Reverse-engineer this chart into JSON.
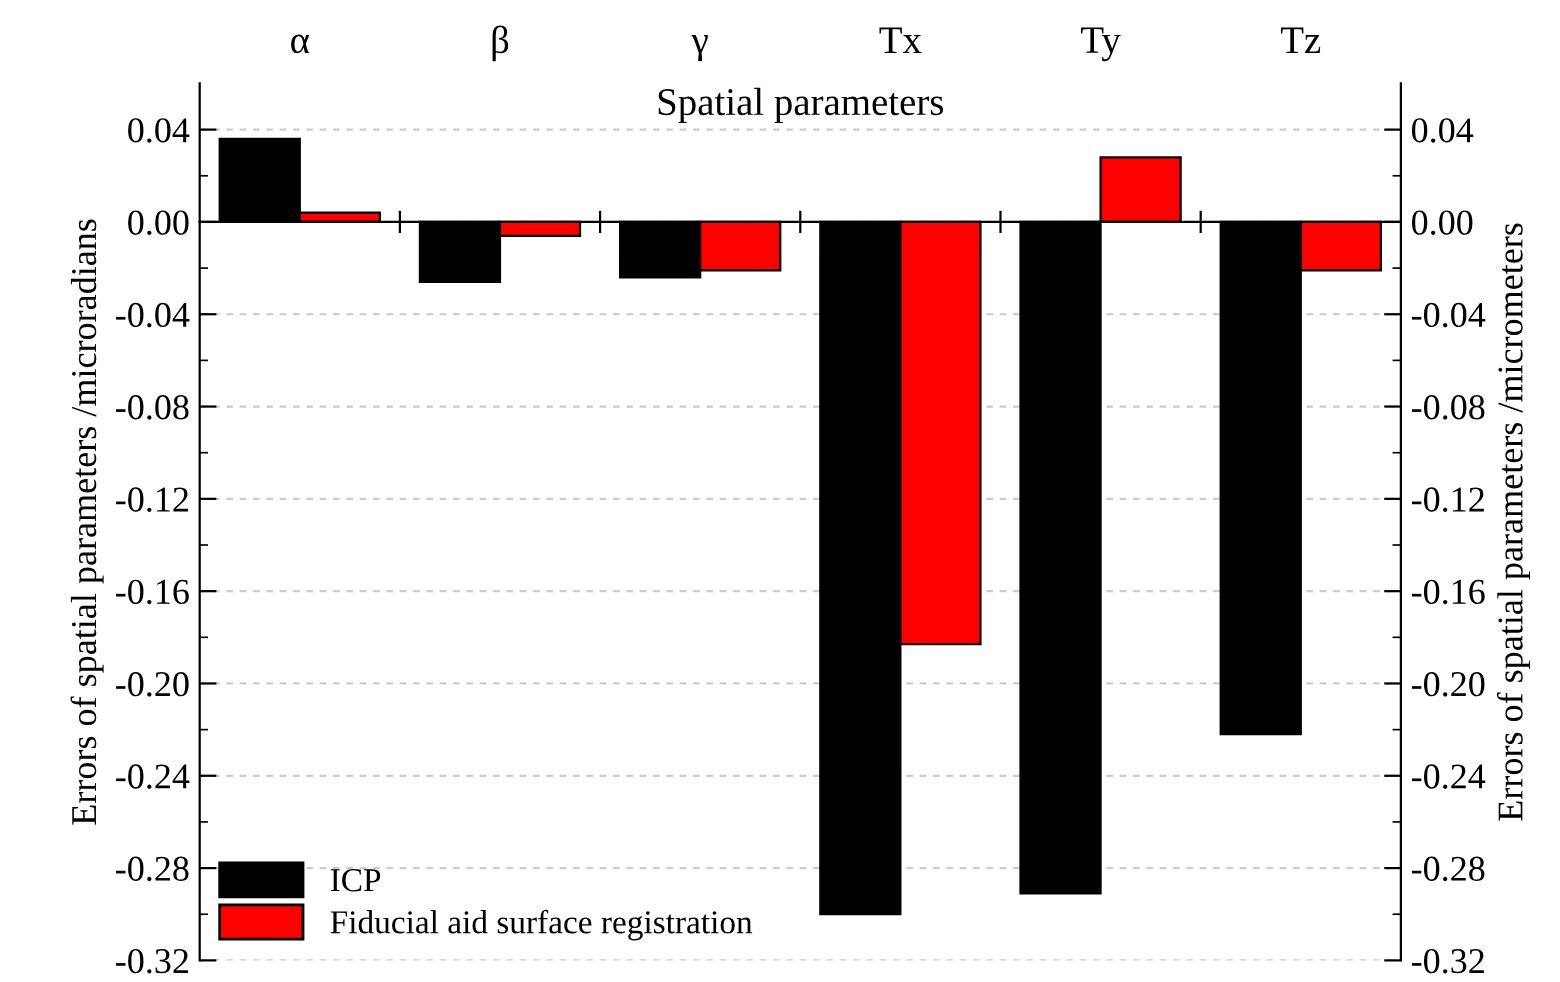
{
  "chart_data": {
    "type": "bar",
    "xlabel": "Spatial parameters",
    "ylabel": "Errors of spatial parameters /microradians",
    "y2label": "Errors of spatial parameters /micrometers",
    "categories": [
      "α",
      "β",
      "γ",
      "Tx",
      "Ty",
      "Tz"
    ],
    "series": [
      {
        "name": "ICP",
        "color": "#000000",
        "values": [
          0.036,
          -0.026,
          -0.024,
          -0.3,
          -0.291,
          -0.222
        ]
      },
      {
        "name": "Fiducial aid surface registration",
        "color": "#ff0000",
        "values": [
          0.004,
          -0.006,
          -0.021,
          -0.183,
          0.028,
          -0.021
        ]
      }
    ],
    "ylim": [
      -0.32,
      0.06
    ],
    "yticks": [
      {
        "value": 0.04,
        "label": "0.04"
      },
      {
        "value": 0.0,
        "label": "0.00"
      },
      {
        "value": -0.04,
        "label": "-0.04"
      },
      {
        "value": -0.08,
        "label": "-0.08"
      },
      {
        "value": -0.12,
        "label": "-0.12"
      },
      {
        "value": -0.16,
        "label": "-0.16"
      },
      {
        "value": -0.2,
        "label": "-0.20"
      },
      {
        "value": -0.24,
        "label": "-0.24"
      },
      {
        "value": -0.28,
        "label": "-0.28"
      },
      {
        "value": -0.32,
        "label": "-0.32"
      }
    ],
    "y2lim": [
      -0.32,
      0.06
    ],
    "y2ticks": [
      {
        "value": 0.04,
        "label": "0.04"
      },
      {
        "value": 0.0,
        "label": "0.00"
      },
      {
        "value": -0.04,
        "label": "-0.04"
      },
      {
        "value": -0.08,
        "label": "-0.08"
      },
      {
        "value": -0.12,
        "label": "-0.12"
      },
      {
        "value": -0.16,
        "label": "-0.16"
      },
      {
        "value": -0.2,
        "label": "-0.20"
      },
      {
        "value": -0.24,
        "label": "-0.24"
      },
      {
        "value": -0.28,
        "label": "-0.28"
      },
      {
        "value": -0.32,
        "label": "-0.32"
      }
    ],
    "grid": "y",
    "legend": "bottom left"
  }
}
